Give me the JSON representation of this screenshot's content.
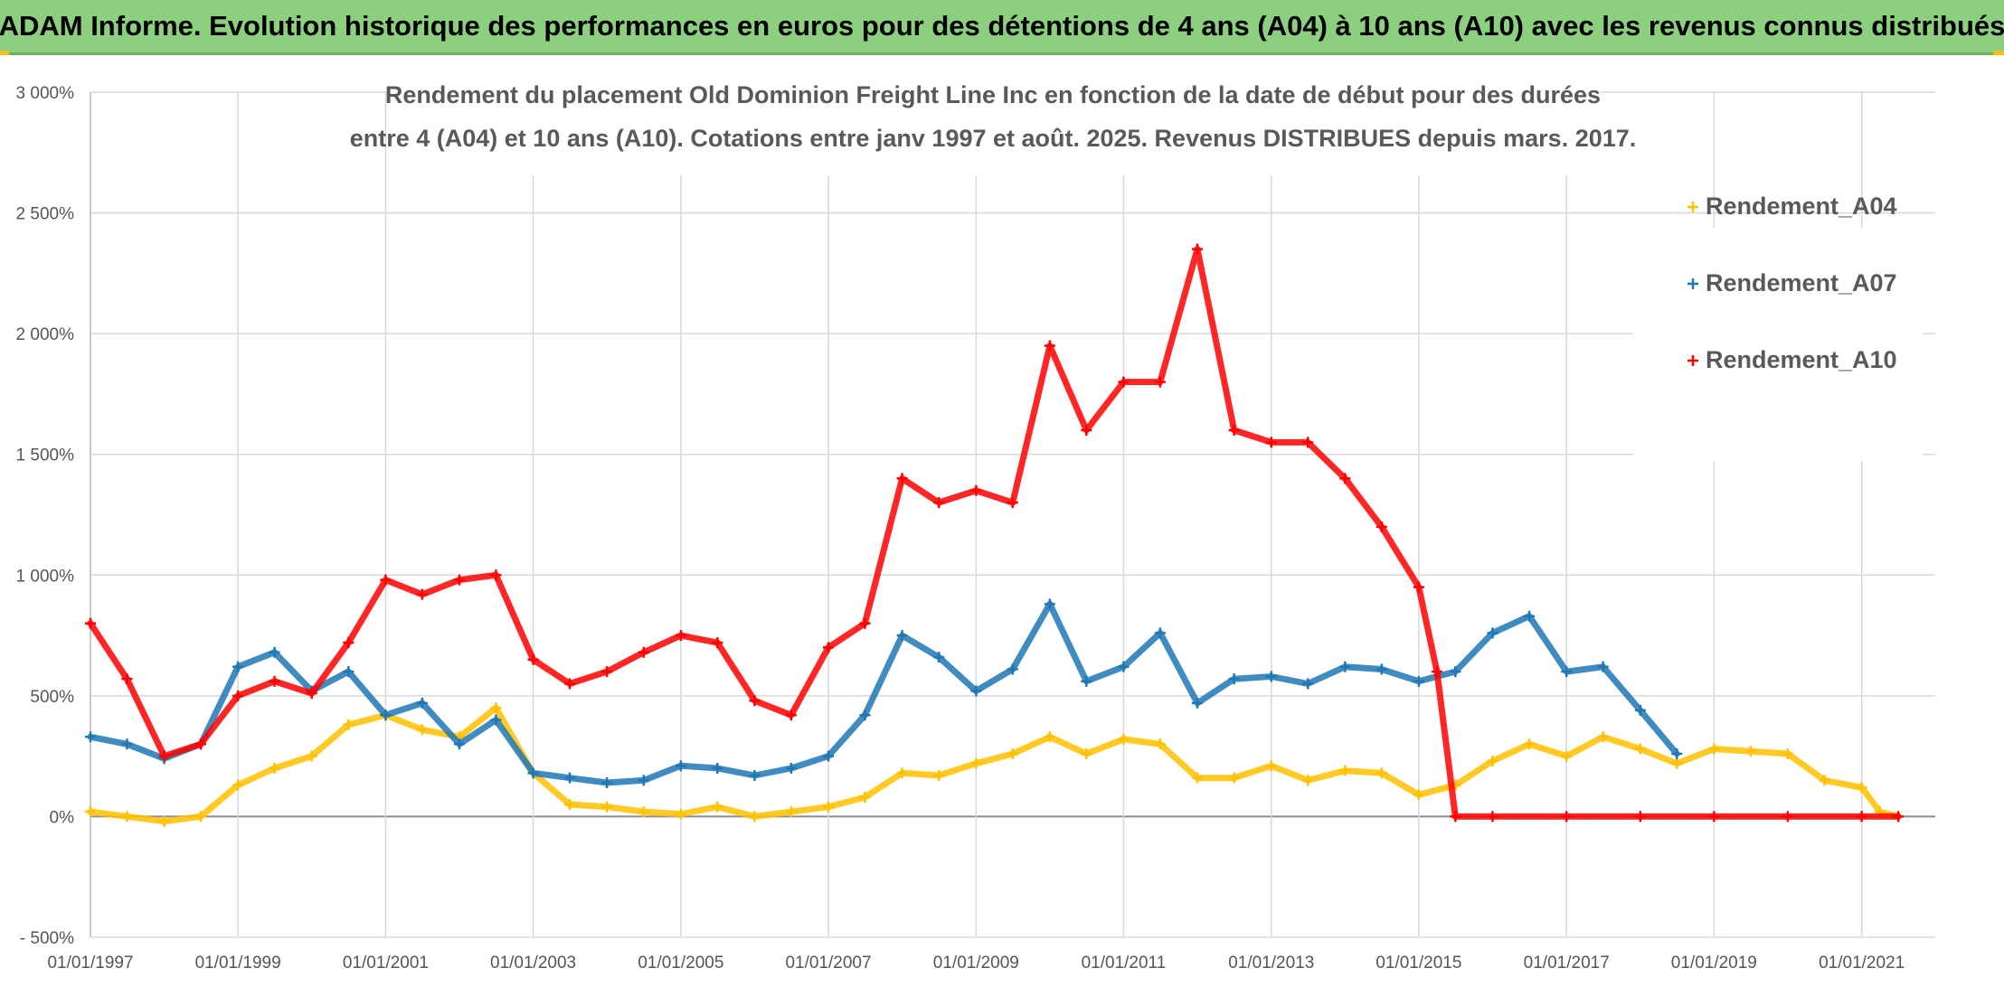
{
  "header": {
    "title": "ADAM Informe. Evolution historique des performances en euros pour des détentions de 4 ans (A04) à 10 ans (A10) avec les revenus connus distribués"
  },
  "chart_data": {
    "type": "scatter",
    "subtitle_lines": [
      "Rendement du placement Old Dominion Freight Line Inc en fonction de la date de début pour des durées",
      "entre 4 (A04) et 10 ans (A10). Cotations entre janv 1997 et août. 2025. Revenus DISTRIBUES depuis mars. 2017."
    ],
    "x_ticks": [
      "01/01/1997",
      "01/01/1999",
      "01/01/2001",
      "01/01/2003",
      "01/01/2005",
      "01/01/2007",
      "01/01/2009",
      "01/01/2011",
      "01/01/2013",
      "01/01/2015",
      "01/01/2017",
      "01/01/2019",
      "01/01/2021"
    ],
    "y_ticks": [
      "- 500%",
      "0%",
      "500%",
      "1 000%",
      "1 500%",
      "2 000%",
      "2 500%",
      "3 000%"
    ],
    "y_values": [
      -500,
      0,
      500,
      1000,
      1500,
      2000,
      2500,
      3000
    ],
    "xlim": [
      "1997-01-01",
      "2021-12-31"
    ],
    "ylim": [
      -500,
      3000
    ],
    "grid": true,
    "legend_position": "right",
    "marker": "+",
    "series": [
      {
        "name": "Rendement_A04",
        "color": "#ffc000",
        "points": [
          [
            "1997-01-01",
            20
          ],
          [
            "1997-07-01",
            0
          ],
          [
            "1998-01-01",
            -20
          ],
          [
            "1998-07-01",
            0
          ],
          [
            "1999-01-01",
            130
          ],
          [
            "1999-07-01",
            200
          ],
          [
            "2000-01-01",
            250
          ],
          [
            "2000-07-01",
            380
          ],
          [
            "2001-01-01",
            420
          ],
          [
            "2001-07-01",
            360
          ],
          [
            "2002-01-01",
            330
          ],
          [
            "2002-07-01",
            450
          ],
          [
            "2003-01-01",
            180
          ],
          [
            "2003-07-01",
            50
          ],
          [
            "2004-01-01",
            40
          ],
          [
            "2004-07-01",
            20
          ],
          [
            "2005-01-01",
            10
          ],
          [
            "2005-07-01",
            40
          ],
          [
            "2006-01-01",
            0
          ],
          [
            "2006-07-01",
            20
          ],
          [
            "2007-01-01",
            40
          ],
          [
            "2007-07-01",
            80
          ],
          [
            "2008-01-01",
            180
          ],
          [
            "2008-07-01",
            170
          ],
          [
            "2009-01-01",
            220
          ],
          [
            "2009-07-01",
            260
          ],
          [
            "2010-01-01",
            330
          ],
          [
            "2010-07-01",
            260
          ],
          [
            "2011-01-01",
            320
          ],
          [
            "2011-07-01",
            300
          ],
          [
            "2012-01-01",
            160
          ],
          [
            "2012-07-01",
            160
          ],
          [
            "2013-01-01",
            210
          ],
          [
            "2013-07-01",
            150
          ],
          [
            "2014-01-01",
            190
          ],
          [
            "2014-07-01",
            180
          ],
          [
            "2015-01-01",
            90
          ],
          [
            "2015-07-01",
            130
          ],
          [
            "2016-01-01",
            230
          ],
          [
            "2016-07-01",
            300
          ],
          [
            "2017-01-01",
            250
          ],
          [
            "2017-07-01",
            330
          ],
          [
            "2018-01-01",
            280
          ],
          [
            "2018-07-01",
            220
          ],
          [
            "2019-01-01",
            280
          ],
          [
            "2019-07-01",
            270
          ],
          [
            "2020-01-01",
            260
          ],
          [
            "2020-07-01",
            150
          ],
          [
            "2021-01-01",
            120
          ],
          [
            "2021-04-01",
            20
          ],
          [
            "2021-07-01",
            0
          ]
        ]
      },
      {
        "name": "Rendement_A07",
        "color": "#1f77b4",
        "points": [
          [
            "1997-01-01",
            330
          ],
          [
            "1997-07-01",
            300
          ],
          [
            "1998-01-01",
            240
          ],
          [
            "1998-07-01",
            300
          ],
          [
            "1999-01-01",
            620
          ],
          [
            "1999-07-01",
            680
          ],
          [
            "2000-01-01",
            520
          ],
          [
            "2000-07-01",
            600
          ],
          [
            "2001-01-01",
            420
          ],
          [
            "2001-07-01",
            470
          ],
          [
            "2002-01-01",
            300
          ],
          [
            "2002-07-01",
            400
          ],
          [
            "2003-01-01",
            180
          ],
          [
            "2003-07-01",
            160
          ],
          [
            "2004-01-01",
            140
          ],
          [
            "2004-07-01",
            150
          ],
          [
            "2005-01-01",
            210
          ],
          [
            "2005-07-01",
            200
          ],
          [
            "2006-01-01",
            170
          ],
          [
            "2006-07-01",
            200
          ],
          [
            "2007-01-01",
            250
          ],
          [
            "2007-07-01",
            420
          ],
          [
            "2008-01-01",
            750
          ],
          [
            "2008-07-01",
            660
          ],
          [
            "2009-01-01",
            520
          ],
          [
            "2009-07-01",
            610
          ],
          [
            "2010-01-01",
            880
          ],
          [
            "2010-07-01",
            560
          ],
          [
            "2011-01-01",
            620
          ],
          [
            "2011-07-01",
            760
          ],
          [
            "2012-01-01",
            470
          ],
          [
            "2012-07-01",
            570
          ],
          [
            "2013-01-01",
            580
          ],
          [
            "2013-07-01",
            550
          ],
          [
            "2014-01-01",
            620
          ],
          [
            "2014-07-01",
            610
          ],
          [
            "2015-01-01",
            560
          ],
          [
            "2015-07-01",
            600
          ],
          [
            "2016-01-01",
            760
          ],
          [
            "2016-07-01",
            830
          ],
          [
            "2017-01-01",
            600
          ],
          [
            "2017-07-01",
            620
          ],
          [
            "2018-01-01",
            440
          ],
          [
            "2018-07-01",
            260
          ]
        ]
      },
      {
        "name": "Rendement_A10",
        "color": "#ff0000",
        "points": [
          [
            "1997-01-01",
            800
          ],
          [
            "1997-07-01",
            570
          ],
          [
            "1998-01-01",
            250
          ],
          [
            "1998-07-01",
            300
          ],
          [
            "1999-01-01",
            500
          ],
          [
            "1999-07-01",
            560
          ],
          [
            "2000-01-01",
            510
          ],
          [
            "2000-07-01",
            720
          ],
          [
            "2001-01-01",
            980
          ],
          [
            "2001-07-01",
            920
          ],
          [
            "2002-01-01",
            980
          ],
          [
            "2002-07-01",
            1000
          ],
          [
            "2003-01-01",
            650
          ],
          [
            "2003-07-01",
            550
          ],
          [
            "2004-01-01",
            600
          ],
          [
            "2004-07-01",
            680
          ],
          [
            "2005-01-01",
            750
          ],
          [
            "2005-07-01",
            720
          ],
          [
            "2006-01-01",
            480
          ],
          [
            "2006-07-01",
            420
          ],
          [
            "2007-01-01",
            700
          ],
          [
            "2007-07-01",
            800
          ],
          [
            "2008-01-01",
            1400
          ],
          [
            "2008-07-01",
            1300
          ],
          [
            "2009-01-01",
            1350
          ],
          [
            "2009-07-01",
            1300
          ],
          [
            "2010-01-01",
            1950
          ],
          [
            "2010-07-01",
            1600
          ],
          [
            "2011-01-01",
            1800
          ],
          [
            "2011-07-01",
            1800
          ],
          [
            "2012-01-01",
            2350
          ],
          [
            "2012-07-01",
            1600
          ],
          [
            "2013-01-01",
            1550
          ],
          [
            "2013-07-01",
            1550
          ],
          [
            "2014-01-01",
            1400
          ],
          [
            "2014-07-01",
            1200
          ],
          [
            "2015-01-01",
            950
          ],
          [
            "2015-04-01",
            600
          ],
          [
            "2015-07-01",
            0
          ],
          [
            "2016-01-01",
            0
          ],
          [
            "2017-01-01",
            0
          ],
          [
            "2018-01-01",
            0
          ],
          [
            "2019-01-01",
            0
          ],
          [
            "2020-01-01",
            0
          ],
          [
            "2021-01-01",
            0
          ],
          [
            "2021-07-01",
            0
          ]
        ]
      }
    ]
  }
}
